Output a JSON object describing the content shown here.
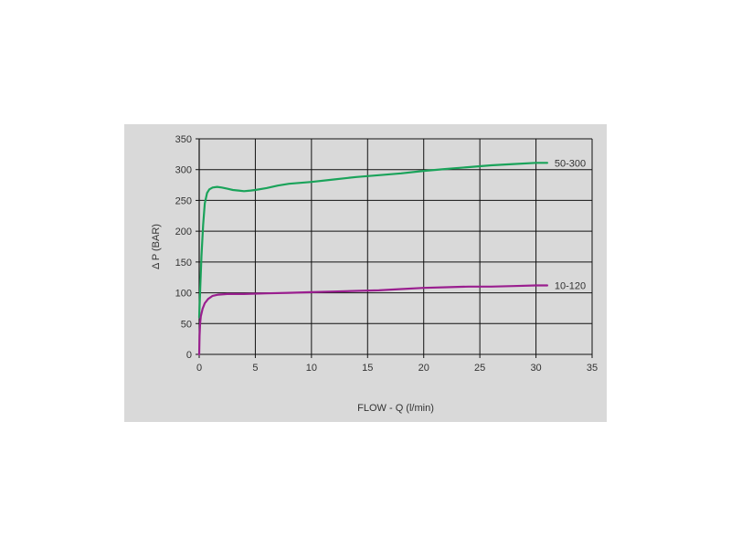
{
  "chart_data": {
    "type": "line",
    "xlabel": "FLOW - Q (l/min)",
    "ylabel": "Δ P (BAR)",
    "xlim": [
      0,
      35
    ],
    "ylim": [
      0,
      350
    ],
    "x_ticks": [
      0,
      5,
      10,
      15,
      20,
      25,
      30,
      35
    ],
    "y_ticks": [
      0,
      50,
      100,
      150,
      200,
      250,
      300,
      350
    ],
    "grid": true,
    "colors": {
      "green": "#1aa35a",
      "magenta": "#9a1f8f",
      "grid": "#111111",
      "panel": "#d9d9d9"
    },
    "series": [
      {
        "name": "50-300",
        "color": "#1aa35a",
        "points": [
          [
            0,
            60
          ],
          [
            0.1,
            110
          ],
          [
            0.2,
            160
          ],
          [
            0.35,
            210
          ],
          [
            0.5,
            245
          ],
          [
            0.7,
            262
          ],
          [
            0.9,
            268
          ],
          [
            1.2,
            271
          ],
          [
            1.6,
            272
          ],
          [
            2,
            271
          ],
          [
            2.5,
            269
          ],
          [
            3,
            267
          ],
          [
            3.5,
            266
          ],
          [
            4,
            265
          ],
          [
            4.6,
            266
          ],
          [
            5,
            267
          ],
          [
            6,
            270
          ],
          [
            7,
            274
          ],
          [
            8,
            277
          ],
          [
            10,
            280
          ],
          [
            12,
            284
          ],
          [
            14,
            288
          ],
          [
            16,
            291
          ],
          [
            18,
            294
          ],
          [
            20,
            298
          ],
          [
            22,
            301
          ],
          [
            24,
            304
          ],
          [
            26,
            307
          ],
          [
            28,
            309
          ],
          [
            30,
            311
          ],
          [
            31,
            311
          ]
        ]
      },
      {
        "name": "10-120",
        "color": "#9a1f8f",
        "points": [
          [
            0,
            0
          ],
          [
            0.03,
            30
          ],
          [
            0.08,
            50
          ],
          [
            0.15,
            62
          ],
          [
            0.3,
            74
          ],
          [
            0.5,
            83
          ],
          [
            0.8,
            90
          ],
          [
            1.2,
            95
          ],
          [
            1.7,
            97
          ],
          [
            2.5,
            98
          ],
          [
            4,
            98
          ],
          [
            6,
            99
          ],
          [
            8,
            100
          ],
          [
            10,
            101
          ],
          [
            12,
            102
          ],
          [
            14,
            103
          ],
          [
            16,
            104
          ],
          [
            18,
            106
          ],
          [
            20,
            108
          ],
          [
            22,
            109
          ],
          [
            24,
            110
          ],
          [
            26,
            110
          ],
          [
            28,
            111
          ],
          [
            30,
            112
          ],
          [
            31,
            112
          ]
        ]
      }
    ]
  }
}
